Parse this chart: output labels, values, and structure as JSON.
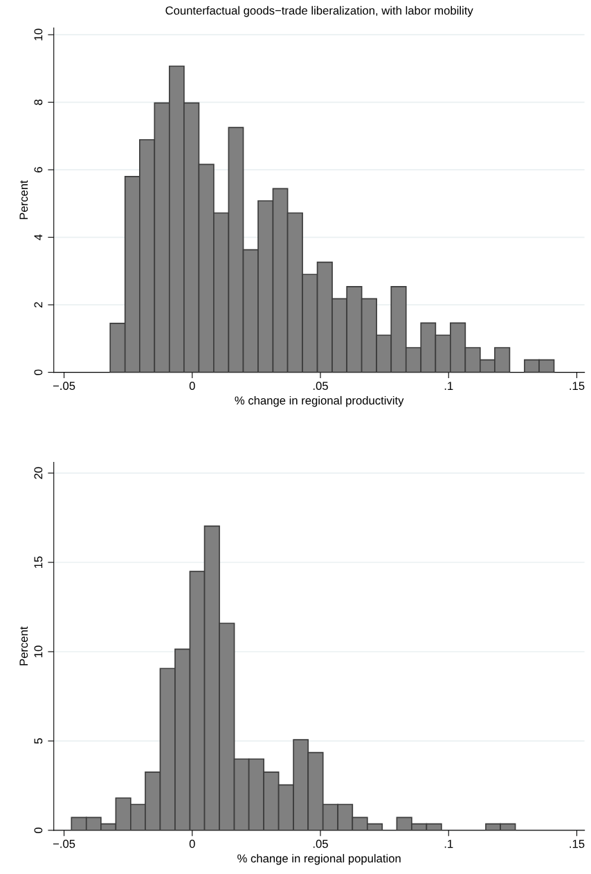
{
  "chart_data": [
    {
      "type": "histogram",
      "title": "Counterfactual goods−trade liberalization, with labor mobility",
      "xlabel": "% change in regional productivity",
      "ylabel": "Percent",
      "color": "#808080",
      "bins": [
        -0.032,
        -0.0262,
        -0.0205,
        -0.0147,
        -0.0089,
        -0.0032,
        0.0026,
        0.0084,
        0.0142,
        0.0199,
        0.0257,
        0.0315,
        0.0372,
        0.043,
        0.0488,
        0.0546,
        0.0603,
        0.0661,
        0.0719,
        0.0776,
        0.0834,
        0.0892,
        0.0949,
        0.1007,
        0.1065,
        0.1123,
        0.118,
        0.1238,
        0.1296,
        0.1353,
        0.1411
      ],
      "values": [
        1.45,
        5.8,
        6.89,
        7.98,
        9.07,
        7.98,
        6.16,
        4.72,
        7.25,
        3.63,
        5.08,
        5.44,
        4.72,
        2.9,
        3.26,
        2.18,
        2.54,
        2.18,
        1.1,
        2.54,
        0.73,
        1.46,
        1.1,
        1.46,
        0.73,
        0.37,
        0.73,
        0,
        0.37,
        0.37
      ],
      "xlim": [
        -0.054,
        0.153
      ],
      "xticks": [
        {
          "value": -0.05,
          "label": "−.05"
        },
        0,
        {
          "value": 0.05,
          "label": ".05"
        },
        {
          "value": 0.1,
          "label": ".1"
        },
        {
          "value": 0.15,
          "label": ".15"
        }
      ],
      "ylim": [
        0,
        10.2
      ],
      "yticks": [
        0,
        2,
        4,
        6,
        8,
        10
      ],
      "grid": "y"
    },
    {
      "type": "histogram",
      "xlabel": "% change in regional population",
      "ylabel": "Percent",
      "color": "#808080",
      "bins": [
        -0.0471,
        -0.0413,
        -0.0356,
        -0.0298,
        -0.024,
        -0.0183,
        -0.0125,
        -0.0067,
        -0.0009,
        0.0048,
        0.0106,
        0.0164,
        0.0221,
        0.0279,
        0.0337,
        0.0395,
        0.0452,
        0.051,
        0.0568,
        0.0625,
        0.0683,
        0.0741,
        0.0798,
        0.0856,
        0.0914,
        0.0972,
        0.1029,
        0.1087,
        0.1145,
        0.1202,
        0.126
      ],
      "values": [
        0.72,
        0.72,
        0.36,
        1.81,
        1.45,
        3.26,
        9.06,
        10.14,
        14.49,
        17.03,
        11.59,
        3.99,
        3.99,
        3.26,
        2.54,
        5.07,
        4.35,
        1.45,
        1.45,
        0.72,
        0.36,
        0,
        0.72,
        0.36,
        0.36,
        0,
        0,
        0,
        0.36,
        0.36
      ],
      "xlim": [
        -0.054,
        0.153
      ],
      "xticks": [
        {
          "value": -0.05,
          "label": "−.05"
        },
        0,
        {
          "value": 0.05,
          "label": ".05"
        },
        {
          "value": 0.1,
          "label": ".1"
        },
        {
          "value": 0.15,
          "label": ".15"
        }
      ],
      "ylim": [
        0,
        20.6
      ],
      "yticks": [
        0,
        5,
        10,
        15,
        20
      ],
      "grid": "y"
    }
  ]
}
